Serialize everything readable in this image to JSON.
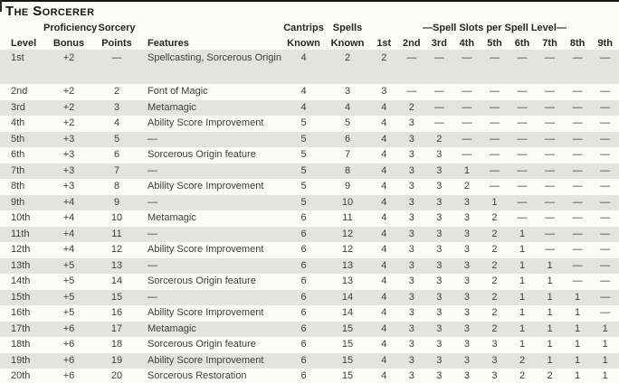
{
  "title": "The Sorcerer",
  "colors": {
    "stripe": "#e3e4e1",
    "background": "#fbfbf8",
    "text": "#3e3e3c",
    "header_text": "#262624"
  },
  "table": {
    "header": {
      "level": "Level",
      "proficiency_line1": "Proficiency",
      "proficiency_line2": "Bonus",
      "sorcery_line1": "Sorcery",
      "sorcery_line2": "Points",
      "features": "Features",
      "cantrips_line1": "Cantrips",
      "cantrips_line2": "Known",
      "spells_line1": "Spells",
      "spells_line2": "Known",
      "spell_slots_group": "—Spell Slots per Spell Level—",
      "slot_levels": [
        "1st",
        "2nd",
        "3rd",
        "4th",
        "5th",
        "6th",
        "7th",
        "8th",
        "9th"
      ]
    },
    "rows": [
      {
        "level": "1st",
        "prof": "+2",
        "points": "—",
        "features": "Spellcasting, Sorcerous Origin",
        "cantrips": "4",
        "spells": "2",
        "slots": [
          "2",
          "—",
          "—",
          "—",
          "—",
          "—",
          "—",
          "—",
          "—"
        ]
      },
      {
        "level": "2nd",
        "prof": "+2",
        "points": "2",
        "features": "Font of Magic",
        "cantrips": "4",
        "spells": "3",
        "slots": [
          "3",
          "—",
          "—",
          "—",
          "—",
          "—",
          "—",
          "—",
          "—"
        ]
      },
      {
        "level": "3rd",
        "prof": "+2",
        "points": "3",
        "features": "Metamagic",
        "cantrips": "4",
        "spells": "4",
        "slots": [
          "4",
          "2",
          "—",
          "—",
          "—",
          "—",
          "—",
          "—",
          "—"
        ]
      },
      {
        "level": "4th",
        "prof": "+2",
        "points": "4",
        "features": "Ability Score Improvement",
        "cantrips": "5",
        "spells": "5",
        "slots": [
          "4",
          "3",
          "—",
          "—",
          "—",
          "—",
          "—",
          "—",
          "—"
        ]
      },
      {
        "level": "5th",
        "prof": "+3",
        "points": "5",
        "features": "—",
        "cantrips": "5",
        "spells": "6",
        "slots": [
          "4",
          "3",
          "2",
          "—",
          "—",
          "—",
          "—",
          "—",
          "—"
        ]
      },
      {
        "level": "6th",
        "prof": "+3",
        "points": "6",
        "features": "Sorcerous Origin feature",
        "cantrips": "5",
        "spells": "7",
        "slots": [
          "4",
          "3",
          "3",
          "—",
          "—",
          "—",
          "—",
          "—",
          "—"
        ]
      },
      {
        "level": "7th",
        "prof": "+3",
        "points": "7",
        "features": "—",
        "cantrips": "5",
        "spells": "8",
        "slots": [
          "4",
          "3",
          "3",
          "1",
          "—",
          "—",
          "—",
          "—",
          "—"
        ]
      },
      {
        "level": "8th",
        "prof": "+3",
        "points": "8",
        "features": "Ability Score Improvement",
        "cantrips": "5",
        "spells": "9",
        "slots": [
          "4",
          "3",
          "3",
          "2",
          "—",
          "—",
          "—",
          "—",
          "—"
        ]
      },
      {
        "level": "9th",
        "prof": "+4",
        "points": "9",
        "features": "—",
        "cantrips": "5",
        "spells": "10",
        "slots": [
          "4",
          "3",
          "3",
          "3",
          "1",
          "—",
          "—",
          "—",
          "—"
        ]
      },
      {
        "level": "10th",
        "prof": "+4",
        "points": "10",
        "features": "Metamagic",
        "cantrips": "6",
        "spells": "11",
        "slots": [
          "4",
          "3",
          "3",
          "3",
          "2",
          "—",
          "—",
          "—",
          "—"
        ]
      },
      {
        "level": "11th",
        "prof": "+4",
        "points": "11",
        "features": "—",
        "cantrips": "6",
        "spells": "12",
        "slots": [
          "4",
          "3",
          "3",
          "3",
          "2",
          "1",
          "—",
          "—",
          "—"
        ]
      },
      {
        "level": "12th",
        "prof": "+4",
        "points": "12",
        "features": "Ability Score Improvement",
        "cantrips": "6",
        "spells": "12",
        "slots": [
          "4",
          "3",
          "3",
          "3",
          "2",
          "1",
          "—",
          "—",
          "—"
        ]
      },
      {
        "level": "13th",
        "prof": "+5",
        "points": "13",
        "features": "—",
        "cantrips": "6",
        "spells": "13",
        "slots": [
          "4",
          "3",
          "3",
          "3",
          "2",
          "1",
          "1",
          "—",
          "—"
        ]
      },
      {
        "level": "14th",
        "prof": "+5",
        "points": "14",
        "features": "Sorcerous Origin feature",
        "cantrips": "6",
        "spells": "13",
        "slots": [
          "4",
          "3",
          "3",
          "3",
          "2",
          "1",
          "1",
          "—",
          "—"
        ]
      },
      {
        "level": "15th",
        "prof": "+5",
        "points": "15",
        "features": "—",
        "cantrips": "6",
        "spells": "14",
        "slots": [
          "4",
          "3",
          "3",
          "3",
          "2",
          "1",
          "1",
          "1",
          "—"
        ]
      },
      {
        "level": "16th",
        "prof": "+5",
        "points": "16",
        "features": "Ability Score Improvement",
        "cantrips": "6",
        "spells": "14",
        "slots": [
          "4",
          "3",
          "3",
          "3",
          "2",
          "1",
          "1",
          "1",
          "—"
        ]
      },
      {
        "level": "17th",
        "prof": "+6",
        "points": "17",
        "features": "Metamagic",
        "cantrips": "6",
        "spells": "15",
        "slots": [
          "4",
          "3",
          "3",
          "3",
          "2",
          "1",
          "1",
          "1",
          "1"
        ]
      },
      {
        "level": "18th",
        "prof": "+6",
        "points": "18",
        "features": "Sorcerous Origin feature",
        "cantrips": "6",
        "spells": "15",
        "slots": [
          "4",
          "3",
          "3",
          "3",
          "3",
          "1",
          "1",
          "1",
          "1"
        ]
      },
      {
        "level": "19th",
        "prof": "+6",
        "points": "19",
        "features": "Ability Score Improvement",
        "cantrips": "6",
        "spells": "15",
        "slots": [
          "4",
          "3",
          "3",
          "3",
          "3",
          "2",
          "1",
          "1",
          "1"
        ]
      },
      {
        "level": "20th",
        "prof": "+6",
        "points": "20",
        "features": "Sorcerous Restoration",
        "cantrips": "6",
        "spells": "15",
        "slots": [
          "4",
          "3",
          "3",
          "3",
          "3",
          "2",
          "2",
          "1",
          "1"
        ]
      }
    ]
  }
}
